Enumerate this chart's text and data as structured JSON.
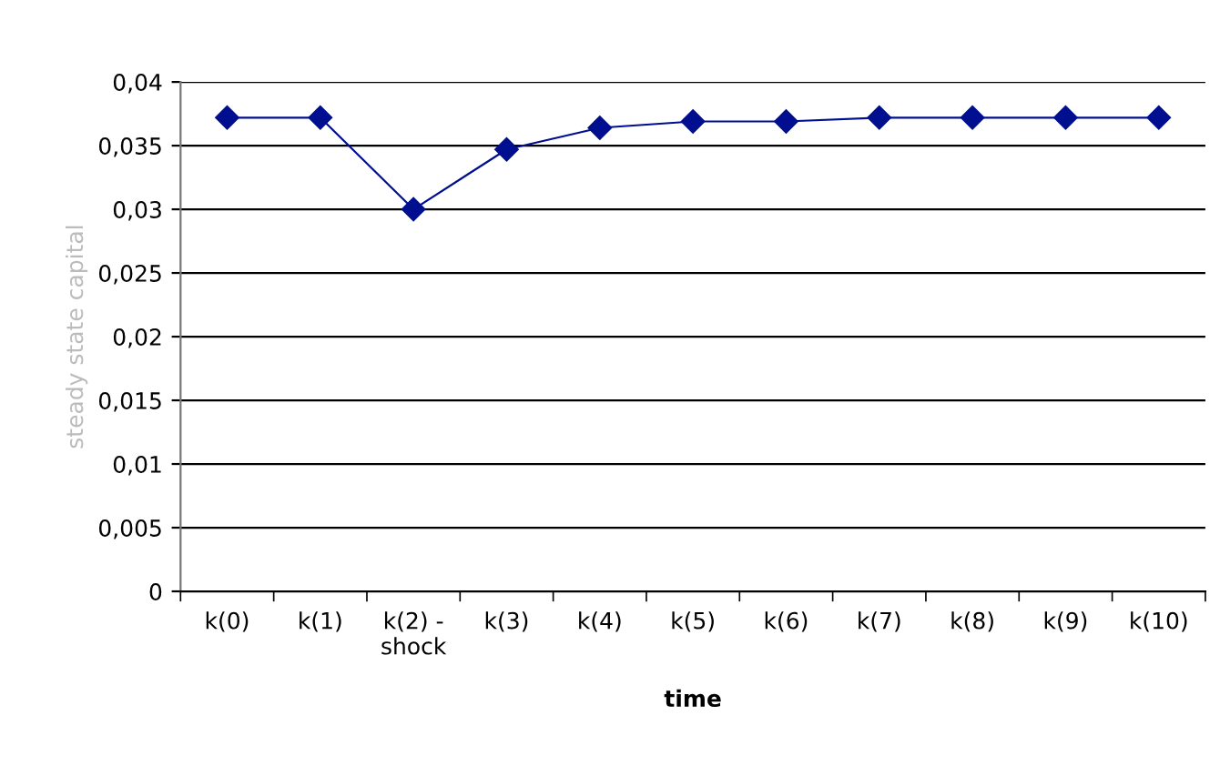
{
  "chart_data": {
    "type": "line",
    "xlabel": "time",
    "ylabel": "steady state capital",
    "categories": [
      "k(0)",
      "k(1)",
      "k(2) -\nshock",
      "k(3)",
      "k(4)",
      "k(5)",
      "k(6)",
      "k(7)",
      "k(8)",
      "k(9)",
      "k(10)"
    ],
    "series": [
      {
        "color": "#000f8f",
        "values": [
          0.0372,
          0.0372,
          0.03,
          0.0347,
          0.0364,
          0.0369,
          0.0369,
          0.0372,
          0.0372,
          0.0372,
          0.0372
        ]
      }
    ],
    "ylim": [
      0,
      0.04
    ],
    "yticks": [
      0,
      {
        "value": 0.005,
        "label": "0,005"
      },
      {
        "value": 0.01,
        "label": "0,01"
      },
      {
        "value": 0.015,
        "label": "0,015"
      },
      {
        "value": 0.02,
        "label": "0,02"
      },
      {
        "value": 0.025,
        "label": "0,025"
      },
      {
        "value": 0.03,
        "label": "0,03"
      },
      {
        "value": 0.035,
        "label": "0,035"
      },
      {
        "value": 0.04,
        "label": "0,04"
      }
    ],
    "grid": "y",
    "marker": "diamond",
    "line_style": "solid",
    "legend": false
  }
}
